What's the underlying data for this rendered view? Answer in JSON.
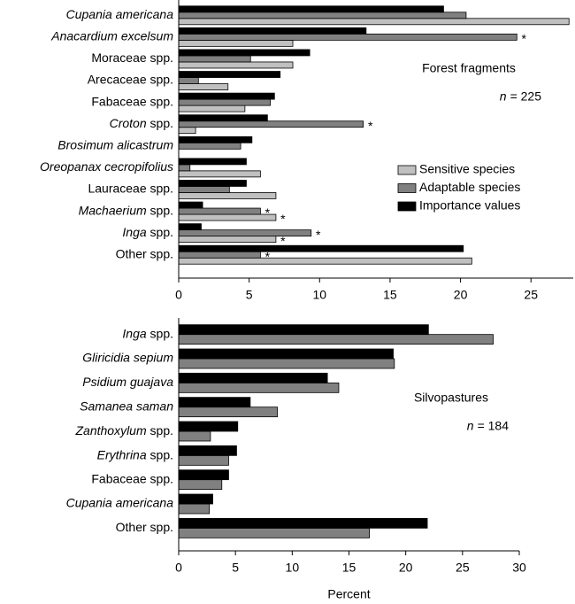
{
  "chart_data": [
    {
      "type": "bar",
      "orientation": "horizontal",
      "title": "Forest fragments",
      "n_symbol": "n",
      "n_value": "= 225",
      "categories": [
        "Cupania americana",
        "Anacardium excelsum",
        "Moraceae spp.",
        "Arecaceae spp.",
        "Fabaceae spp.",
        "Croton spp.",
        "Brosimum alicastrum",
        "Oreopanax cecropifolius",
        "Lauraceae spp.",
        "Machaerium spp.",
        "Inga spp.",
        "Other spp."
      ],
      "category_styles": [
        "italic",
        "italic",
        "normal",
        "normal",
        "normal",
        "genus",
        "italic",
        "italic",
        "normal",
        "genus",
        "genus",
        "normal"
      ],
      "series": [
        {
          "name": "Sensitive species",
          "color": "#c0c0c0",
          "values": [
            27.7,
            8.1,
            8.1,
            3.5,
            4.7,
            1.2,
            0,
            5.8,
            6.9,
            6.9,
            6.9,
            20.8
          ],
          "annotations": [
            null,
            null,
            null,
            null,
            null,
            null,
            null,
            null,
            null,
            "*",
            "*",
            null
          ]
        },
        {
          "name": "Adaptable species",
          "color": "#808080",
          "values": [
            20.4,
            24.0,
            5.1,
            1.4,
            6.5,
            13.1,
            4.4,
            0.8,
            3.6,
            5.8,
            9.4,
            5.8
          ],
          "annotations": [
            null,
            "*",
            null,
            null,
            null,
            "*",
            null,
            null,
            null,
            "*",
            "*",
            "*"
          ]
        },
        {
          "name": "Importance values",
          "color": "#000000",
          "values": [
            18.8,
            13.3,
            9.3,
            7.2,
            6.8,
            6.3,
            5.2,
            4.8,
            4.8,
            1.7,
            1.6,
            20.2
          ],
          "annotations": [
            null,
            null,
            null,
            null,
            null,
            null,
            null,
            null,
            null,
            null,
            null,
            null
          ]
        }
      ],
      "xlim": [
        0,
        28
      ],
      "xticks": [
        0,
        5,
        10,
        15,
        20,
        25
      ],
      "legend": true,
      "legend_position": "right"
    },
    {
      "type": "bar",
      "orientation": "horizontal",
      "title": "Silvopastures",
      "n_symbol": "n",
      "n_value": "= 184",
      "categories": [
        "Inga spp.",
        "Gliricidia sepium",
        "Psidium guajava",
        "Samanea saman",
        "Zanthoxylum spp.",
        "Erythrina spp.",
        "Fabaceae spp.",
        "Cupania americana",
        "Other spp."
      ],
      "category_styles": [
        "genus",
        "italic",
        "italic",
        "italic",
        "genus",
        "genus",
        "normal",
        "italic",
        "normal"
      ],
      "series": [
        {
          "name": "Adaptable species",
          "color": "#808080",
          "values": [
            27.7,
            19.0,
            14.1,
            8.7,
            2.8,
            4.4,
            3.8,
            2.7,
            16.8
          ]
        },
        {
          "name": "Importance values",
          "color": "#000000",
          "values": [
            22.0,
            18.9,
            13.1,
            6.3,
            5.2,
            5.1,
            4.4,
            3.0,
            21.9
          ]
        }
      ],
      "xlim": [
        0,
        30
      ],
      "xticks": [
        0,
        5,
        10,
        15,
        20,
        25,
        30
      ],
      "xlabel": "Percent",
      "legend": false
    }
  ]
}
